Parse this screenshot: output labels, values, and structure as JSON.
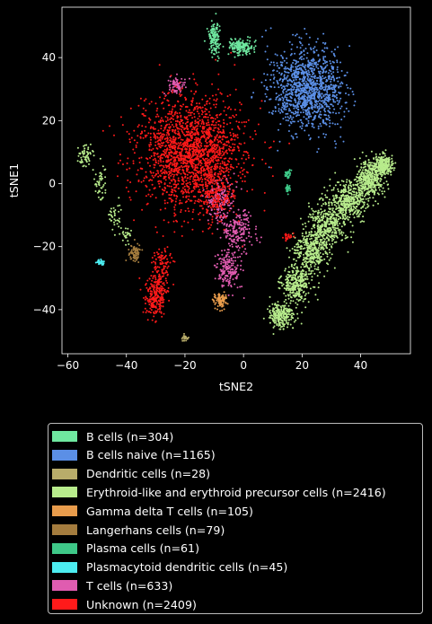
{
  "chart_data": {
    "type": "scatter",
    "xlabel": "tSNE2",
    "ylabel": "tSNE1",
    "xlim": [
      -62,
      57
    ],
    "ylim": [
      -54,
      56
    ],
    "xticks": [
      -60,
      -40,
      -20,
      0,
      20,
      40
    ],
    "yticks": [
      -40,
      -20,
      0,
      20,
      40
    ],
    "legend_position": "below",
    "series": [
      {
        "name": "B cells (n=304)",
        "color": "#6fe8a0",
        "n": 304,
        "clusters": [
          {
            "x": -10,
            "y": 46,
            "sx": 1.0,
            "sy": 2.5,
            "w": 0.45
          },
          {
            "x": -1,
            "y": 43.5,
            "sx": 2.2,
            "sy": 1.2,
            "w": 0.55
          }
        ]
      },
      {
        "name": "B cells naive (n=1165)",
        "color": "#5b8fe6",
        "n": 1165,
        "clusters": [
          {
            "x": 22,
            "y": 30,
            "sx": 6.0,
            "sy": 6.5,
            "w": 1.0
          }
        ]
      },
      {
        "name": "Dendritic cells (n=28)",
        "color": "#b8ac6a",
        "n": 28,
        "clusters": [
          {
            "x": -20,
            "y": -49,
            "sx": 0.6,
            "sy": 0.4,
            "w": 1.0
          }
        ]
      },
      {
        "name": "Erythroid-like and erythroid precursor cells (n=2416)",
        "color": "#b8ec8c",
        "n": 2416,
        "clusters": [
          {
            "x": 13,
            "y": -42,
            "sx": 2.0,
            "sy": 2.0,
            "w": 0.1
          },
          {
            "x": 18,
            "y": -32,
            "sx": 2.5,
            "sy": 3.0,
            "w": 0.12
          },
          {
            "x": 23,
            "y": -22,
            "sx": 3.0,
            "sy": 3.5,
            "w": 0.15
          },
          {
            "x": 29,
            "y": -13,
            "sx": 3.0,
            "sy": 3.5,
            "w": 0.16
          },
          {
            "x": 36,
            "y": -5,
            "sx": 3.0,
            "sy": 3.0,
            "w": 0.16
          },
          {
            "x": 43,
            "y": 2,
            "sx": 2.5,
            "sy": 3.0,
            "w": 0.16
          },
          {
            "x": 48,
            "y": 6,
            "sx": 1.5,
            "sy": 1.5,
            "w": 0.1
          },
          {
            "x": -54,
            "y": 9,
            "sx": 1.2,
            "sy": 1.8,
            "w": 0.025
          },
          {
            "x": -49,
            "y": 0,
            "sx": 1.2,
            "sy": 2.5,
            "w": 0.02
          },
          {
            "x": -44,
            "y": -10,
            "sx": 1.2,
            "sy": 2.5,
            "w": 0.015
          },
          {
            "x": -40,
            "y": -16,
            "sx": 1.0,
            "sy": 1.5,
            "w": 0.01
          }
        ]
      },
      {
        "name": "Gamma delta T cells (n=105)",
        "color": "#e89c4c",
        "n": 105,
        "clusters": [
          {
            "x": -8,
            "y": -37,
            "sx": 1.2,
            "sy": 1.2,
            "w": 1.0
          }
        ]
      },
      {
        "name": "Langerhans cells (n=79)",
        "color": "#a47c3e",
        "n": 79,
        "clusters": [
          {
            "x": -37,
            "y": -22,
            "sx": 1.0,
            "sy": 1.5,
            "w": 1.0
          }
        ]
      },
      {
        "name": "Plasma cells (n=61)",
        "color": "#3ec888",
        "n": 61,
        "clusters": [
          {
            "x": 15,
            "y": 3,
            "sx": 0.5,
            "sy": 0.6,
            "w": 0.5
          },
          {
            "x": 15,
            "y": -1.5,
            "sx": 0.5,
            "sy": 0.6,
            "w": 0.5
          }
        ]
      },
      {
        "name": "Plasmacytoid dendritic cells (n=45)",
        "color": "#4cecf0",
        "n": 45,
        "clusters": [
          {
            "x": -49,
            "y": -25,
            "sx": 0.6,
            "sy": 0.5,
            "w": 1.0
          }
        ]
      },
      {
        "name": "T cells (n=633)",
        "color": "#e05cb0",
        "n": 633,
        "clusters": [
          {
            "x": -23,
            "y": 31,
            "sx": 1.5,
            "sy": 1.3,
            "w": 0.12
          },
          {
            "x": -2,
            "y": -15,
            "sx": 2.5,
            "sy": 3.0,
            "w": 0.3
          },
          {
            "x": -5,
            "y": -27,
            "sx": 2.0,
            "sy": 3.0,
            "w": 0.28
          },
          {
            "x": -8,
            "y": -5,
            "sx": 2.5,
            "sy": 4.0,
            "w": 0.3
          }
        ]
      },
      {
        "name": "Unknown (n=2409)",
        "color": "#ff1a1a",
        "n": 2409,
        "clusters": [
          {
            "x": -18,
            "y": 10,
            "sx": 9.0,
            "sy": 9.0,
            "w": 0.8
          },
          {
            "x": -30,
            "y": -36,
            "sx": 1.8,
            "sy": 3.0,
            "w": 0.09
          },
          {
            "x": -28,
            "y": -27,
            "sx": 1.5,
            "sy": 3.5,
            "w": 0.05
          },
          {
            "x": -9,
            "y": -5,
            "sx": 3.0,
            "sy": 4.0,
            "w": 0.05
          },
          {
            "x": 15,
            "y": -17,
            "sx": 1.0,
            "sy": 0.6,
            "w": 0.01
          }
        ]
      }
    ]
  }
}
